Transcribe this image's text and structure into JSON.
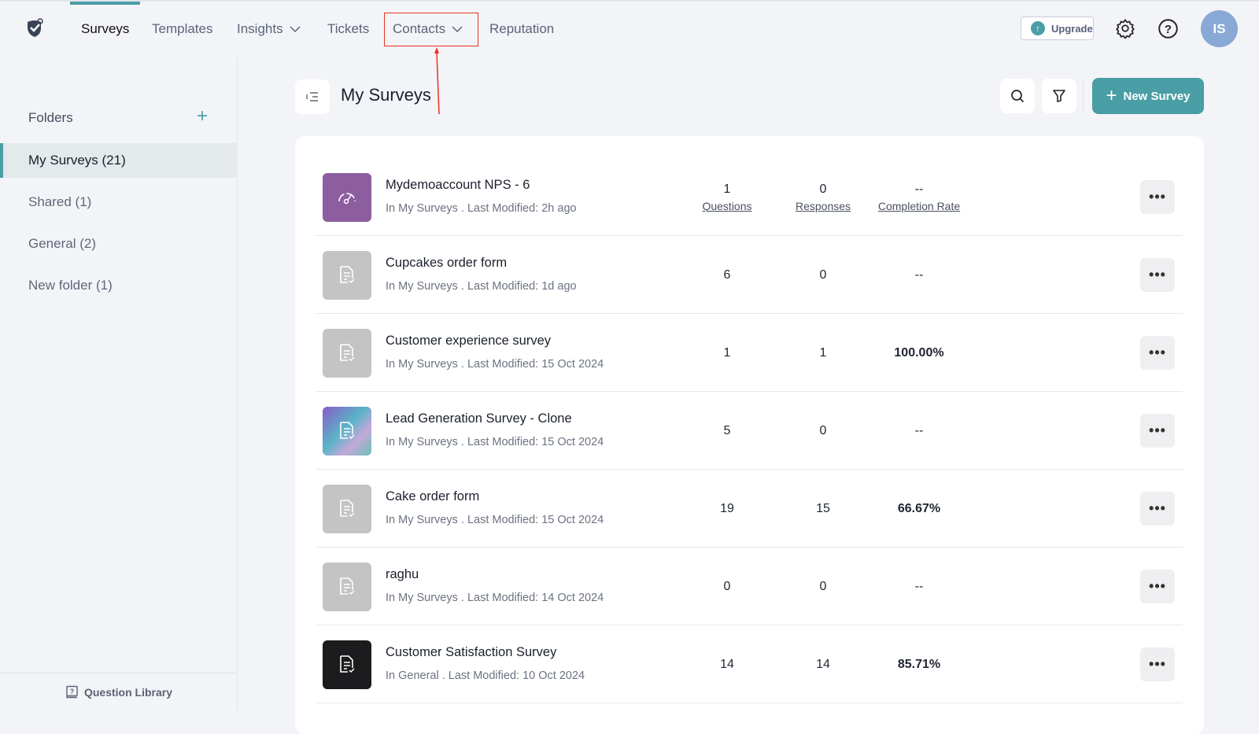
{
  "nav": {
    "items": [
      {
        "label": "Surveys",
        "active": true
      },
      {
        "label": "Templates"
      },
      {
        "label": "Insights",
        "dropdown": true
      },
      {
        "label": "Tickets"
      },
      {
        "label": "Contacts",
        "dropdown": true,
        "highlighted": true
      },
      {
        "label": "Reputation"
      }
    ],
    "upgrade": "Upgrade",
    "avatar": "IS",
    "accent": "#4a9ea6",
    "highlight_color": "#e8321f"
  },
  "sidebar": {
    "folders_label": "Folders",
    "items": [
      "My Surveys (21)",
      "Shared (1)",
      "General (2)",
      "New folder (1)"
    ],
    "question_library": "Question Library"
  },
  "main": {
    "title": "My Surveys",
    "new_survey": "New Survey"
  },
  "column_labels": {
    "questions": "Questions",
    "responses": "Responses",
    "completion": "Completion Rate"
  },
  "surveys": [
    {
      "name": "Mydemoaccount NPS - 6",
      "meta": "In My Surveys . Last Modified: 2h ago",
      "questions": "1",
      "responses": "0",
      "completion": "--",
      "thumb": "nps-purple"
    },
    {
      "name": "Cupcakes order form",
      "meta": "In My Surveys . Last Modified: 1d ago",
      "questions": "6",
      "responses": "0",
      "completion": "--",
      "thumb": "gray"
    },
    {
      "name": "Customer experience survey",
      "meta": "In My Surveys . Last Modified: 15 Oct 2024",
      "questions": "1",
      "responses": "1",
      "completion": "100.00%",
      "thumb": "gray"
    },
    {
      "name": "Lead Generation Survey - Clone",
      "meta": "In My Surveys . Last Modified: 15 Oct 2024",
      "questions": "5",
      "responses": "0",
      "completion": "--",
      "thumb": "gradient"
    },
    {
      "name": "Cake order form",
      "meta": "In My Surveys . Last Modified: 15 Oct 2024",
      "questions": "19",
      "responses": "15",
      "completion": "66.67%",
      "thumb": "gray"
    },
    {
      "name": "raghu",
      "meta": "In My Surveys . Last Modified: 14 Oct 2024",
      "questions": "0",
      "responses": "0",
      "completion": "--",
      "thumb": "gray"
    },
    {
      "name": "Customer Satisfaction Survey",
      "meta": "In General . Last Modified: 10 Oct 2024",
      "questions": "14",
      "responses": "14",
      "completion": "85.71%",
      "thumb": "black"
    }
  ]
}
